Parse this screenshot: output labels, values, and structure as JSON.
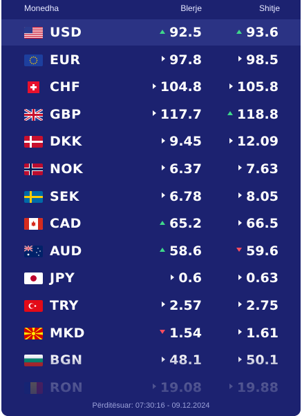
{
  "header": {
    "currency_label": "Monedha",
    "buy_label": "Blerje",
    "sell_label": "Shitje"
  },
  "colors": {
    "background": "#1c2270",
    "highlight_row": "#2b3384",
    "up": "#3fd88a",
    "down": "#ff4d5e",
    "same": "#ffffff"
  },
  "rows": [
    {
      "code": "USD",
      "flag": "us-flag-icon",
      "buy": "92.5",
      "buy_trend": "up",
      "sell": "93.6",
      "sell_trend": "up"
    },
    {
      "code": "EUR",
      "flag": "eu-flag-icon",
      "buy": "97.8",
      "buy_trend": "same",
      "sell": "98.5",
      "sell_trend": "same"
    },
    {
      "code": "CHF",
      "flag": "ch-flag-icon",
      "buy": "104.8",
      "buy_trend": "same",
      "sell": "105.8",
      "sell_trend": "same"
    },
    {
      "code": "GBP",
      "flag": "gb-flag-icon",
      "buy": "117.7",
      "buy_trend": "same",
      "sell": "118.8",
      "sell_trend": "up"
    },
    {
      "code": "DKK",
      "flag": "dk-flag-icon",
      "buy": "9.45",
      "buy_trend": "same",
      "sell": "12.09",
      "sell_trend": "same"
    },
    {
      "code": "NOK",
      "flag": "no-flag-icon",
      "buy": "6.37",
      "buy_trend": "same",
      "sell": "7.63",
      "sell_trend": "same"
    },
    {
      "code": "SEK",
      "flag": "se-flag-icon",
      "buy": "6.78",
      "buy_trend": "same",
      "sell": "8.05",
      "sell_trend": "same"
    },
    {
      "code": "CAD",
      "flag": "ca-flag-icon",
      "buy": "65.2",
      "buy_trend": "up",
      "sell": "66.5",
      "sell_trend": "same"
    },
    {
      "code": "AUD",
      "flag": "au-flag-icon",
      "buy": "58.6",
      "buy_trend": "up",
      "sell": "59.6",
      "sell_trend": "down"
    },
    {
      "code": "JPY",
      "flag": "jp-flag-icon",
      "buy": "0.6",
      "buy_trend": "same",
      "sell": "0.63",
      "sell_trend": "same"
    },
    {
      "code": "TRY",
      "flag": "tr-flag-icon",
      "buy": "2.57",
      "buy_trend": "same",
      "sell": "2.75",
      "sell_trend": "same"
    },
    {
      "code": "MKD",
      "flag": "mk-flag-icon",
      "buy": "1.54",
      "buy_trend": "down",
      "sell": "1.61",
      "sell_trend": "same"
    },
    {
      "code": "BGN",
      "flag": "bg-flag-icon",
      "buy": "48.1",
      "buy_trend": "same",
      "sell": "50.1",
      "sell_trend": "same"
    },
    {
      "code": "RON",
      "flag": "ro-flag-icon",
      "buy": "19.08",
      "buy_trend": "same",
      "sell": "19.88",
      "sell_trend": "same"
    }
  ],
  "footer": {
    "updated": "Përditësuar: 07:30:16 - 09.12.2024"
  }
}
